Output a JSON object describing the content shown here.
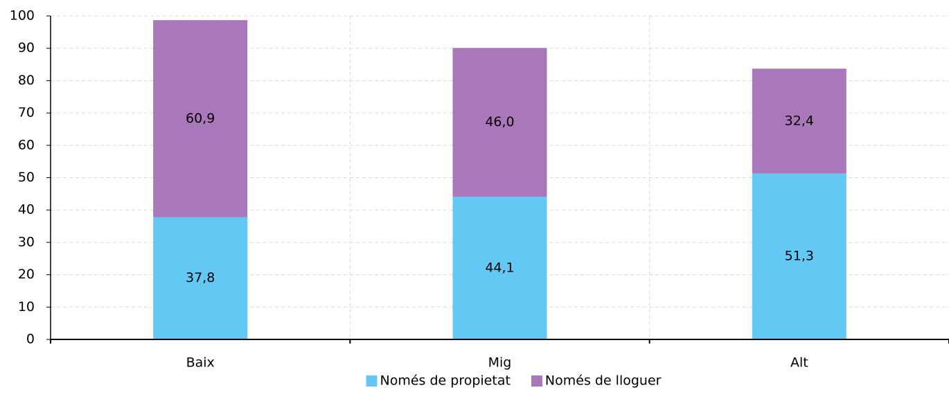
{
  "chart_data": {
    "type": "stacked_bar",
    "categories": [
      "Baix",
      "Mig",
      "Alt"
    ],
    "series": [
      {
        "name": "Només de propietat",
        "color": "#63c9f4",
        "values": [
          37.8,
          44.1,
          51.3
        ],
        "value_labels": [
          "37,8",
          "44,1",
          "51,3"
        ]
      },
      {
        "name": "Només de lloguer",
        "color": "#ab77bb",
        "values": [
          60.9,
          46.0,
          32.4
        ],
        "value_labels": [
          "60,9",
          "46,0",
          "32,4"
        ]
      }
    ],
    "ylim": [
      0,
      100
    ],
    "yticks": [
      0,
      10,
      20,
      30,
      40,
      50,
      60,
      70,
      80,
      90,
      100
    ],
    "grid": true,
    "legend": "bottom"
  }
}
